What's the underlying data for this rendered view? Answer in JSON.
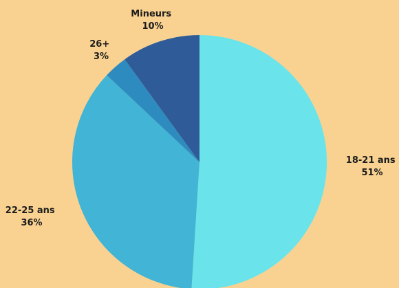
{
  "chart_data": {
    "type": "pie",
    "title": "",
    "start": "top",
    "direction": "clockwise",
    "slices": [
      {
        "label": "18-21 ans",
        "value": 51,
        "display": "51%",
        "color": "#6ae4ea"
      },
      {
        "label": "22-25 ans",
        "value": 36,
        "display": "36%",
        "color": "#42b4d5"
      },
      {
        "label": "26+",
        "value": 3,
        "display": "3%",
        "color": "#2e8bbf"
      },
      {
        "label": "Mineurs",
        "value": 10,
        "display": "10%",
        "color": "#2f5c98"
      }
    ]
  }
}
